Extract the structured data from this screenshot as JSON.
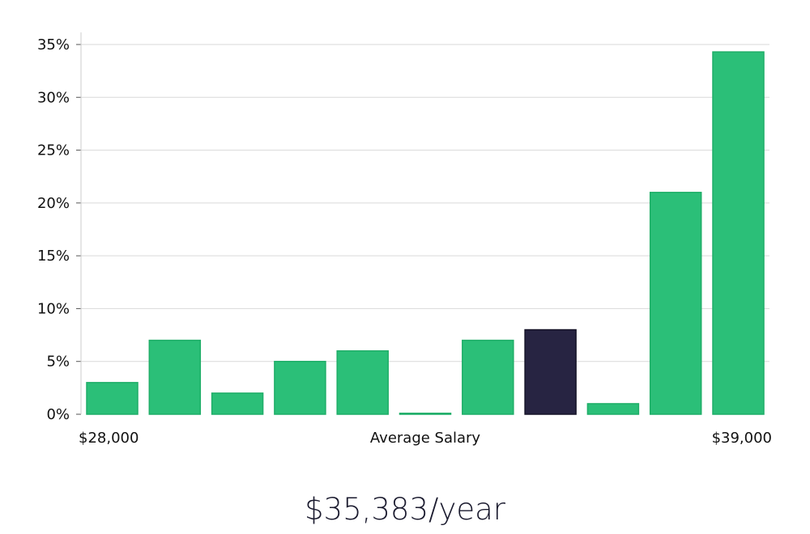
{
  "chart_data": {
    "type": "bar",
    "categories": [
      "$28,000",
      "",
      "",
      "",
      "",
      "",
      "",
      "",
      "",
      "",
      "$39,000"
    ],
    "values": [
      3,
      7,
      2,
      5,
      6,
      0,
      7,
      8,
      1,
      21,
      34.3
    ],
    "highlight_index": 7,
    "xlabel": "Average Salary",
    "ylabel": "",
    "ylim": [
      0,
      35
    ],
    "yticks": [
      0,
      5,
      10,
      15,
      20,
      25,
      30,
      35
    ],
    "ytick_labels": [
      "0%",
      "5%",
      "10%",
      "15%",
      "20%",
      "25%",
      "30%",
      "35%"
    ],
    "grid": true,
    "colors": {
      "bar": "#2bbf78",
      "bar_edge": "#1fae68",
      "highlight": "#272442",
      "grid": "#d9d9d9",
      "axis": "#cccccc"
    }
  },
  "summary": {
    "salary_text": "$35,383/year"
  }
}
